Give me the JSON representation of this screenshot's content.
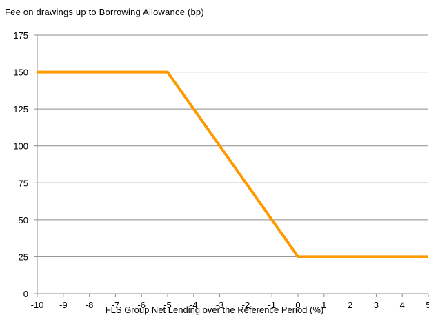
{
  "chart_data": {
    "type": "line",
    "title": "Fee on drawings  up to Borrowing  Allowance (bp)",
    "xlabel": "FLS Group Net Lending over the Reference Period (%)",
    "ylabel": "",
    "x_ticks": [
      "-10",
      "-9",
      "-8",
      "-7",
      "-6",
      "-5",
      "-4",
      "-3",
      "-2",
      "-1",
      "0",
      "1",
      "2",
      "3",
      "4",
      "5"
    ],
    "y_ticks": [
      "0",
      "25",
      "50",
      "75",
      "100",
      "125",
      "150",
      "175"
    ],
    "xlim": [
      -10,
      5
    ],
    "ylim": [
      0,
      175
    ],
    "grid": "horizontal",
    "legend": "none",
    "series": [
      {
        "color": "#FF9900",
        "x": [
          -10,
          -5,
          0,
          5
        ],
        "y": [
          150,
          150,
          25,
          25
        ]
      }
    ]
  }
}
